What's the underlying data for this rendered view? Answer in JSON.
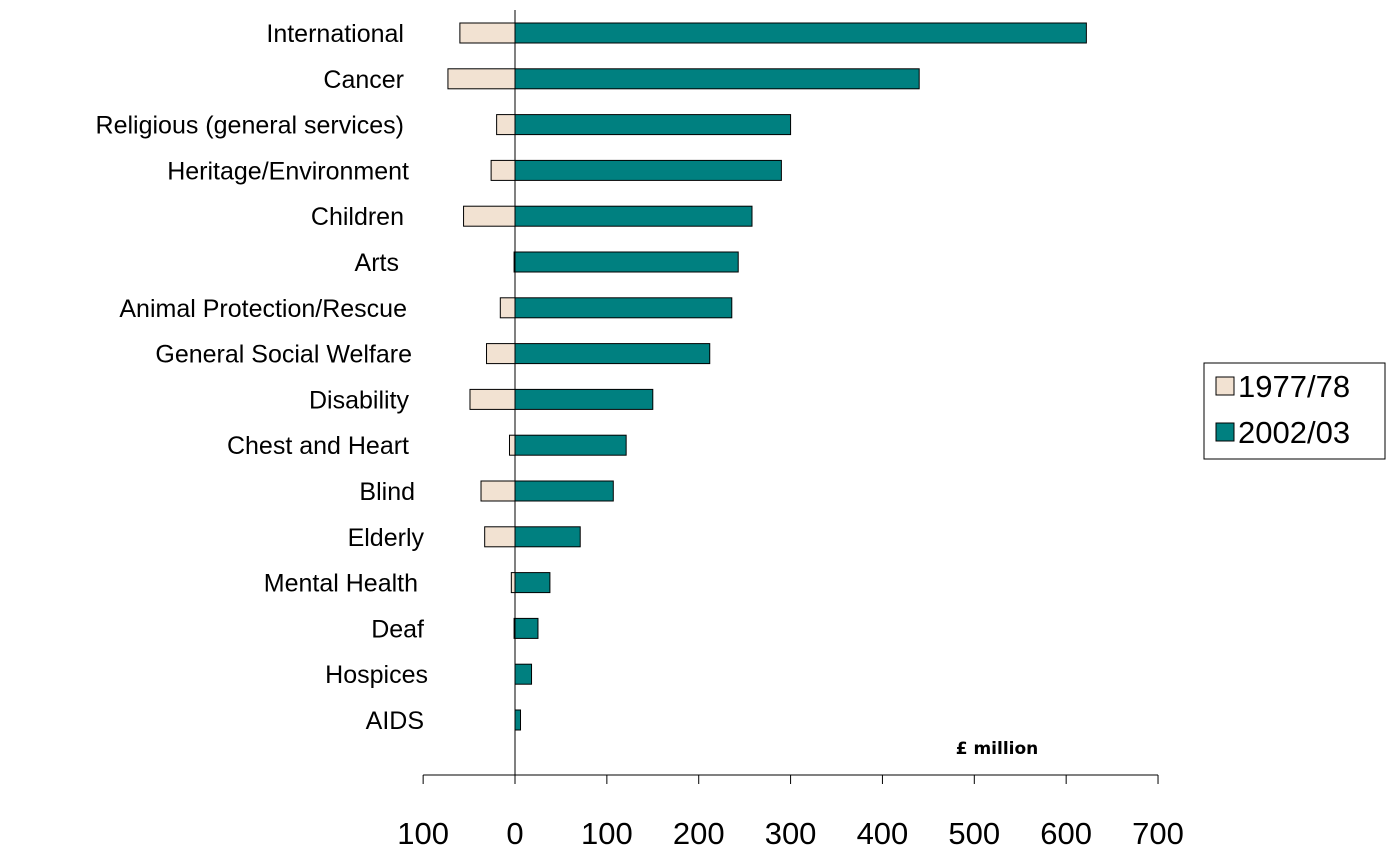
{
  "chart_data": {
    "type": "bar",
    "orientation": "horizontal",
    "categories": [
      "International",
      "Cancer",
      "Religious (general services)",
      "Heritage/Environment",
      "Children",
      "Arts",
      "Animal Protection/Rescue",
      "General Social Welfare",
      "Disability",
      "Chest and Heart",
      "Blind",
      "Elderly",
      "Mental Health",
      "Deaf",
      "Hospices",
      "AIDS"
    ],
    "series": [
      {
        "name": "1977/78",
        "color": "#F2E2D2",
        "values": [
          -60,
          -73,
          -20,
          -26,
          -56,
          -1,
          -16,
          -31,
          -49,
          -6,
          -37,
          -33,
          -4,
          -1,
          0,
          0
        ]
      },
      {
        "name": "2002/03",
        "color": "#008080",
        "values": [
          622,
          440,
          300,
          290,
          258,
          243,
          236,
          212,
          150,
          121,
          107,
          71,
          38,
          25,
          18,
          6
        ]
      }
    ],
    "unit_label": "£ million",
    "xlim": [
      -100,
      700
    ],
    "xticks": [
      {
        "value": -100,
        "label": "100",
        "color": "#FF0000"
      },
      {
        "value": 0,
        "label": "0",
        "color": "#000000"
      },
      {
        "value": 100,
        "label": "100",
        "color": "#000000"
      },
      {
        "value": 200,
        "label": "200",
        "color": "#000000"
      },
      {
        "value": 300,
        "label": "300",
        "color": "#000000"
      },
      {
        "value": 400,
        "label": "400",
        "color": "#000000"
      },
      {
        "value": 500,
        "label": "500",
        "color": "#000000"
      },
      {
        "value": 600,
        "label": "600",
        "color": "#000000"
      },
      {
        "value": 700,
        "label": "700",
        "color": "#000000"
      }
    ],
    "title": "",
    "xlabel": "",
    "ylabel": "",
    "grid": false,
    "legend_position": "right"
  }
}
